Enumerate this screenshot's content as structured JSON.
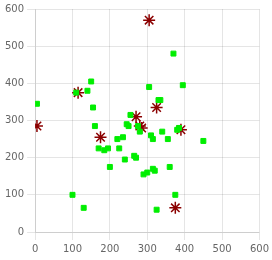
{
  "chart_data": {
    "type": "scatter",
    "series": [
      {
        "color": "#00ee00",
        "marker": "square",
        "x": [
          5,
          100,
          130,
          110,
          140,
          150,
          155,
          160,
          170,
          185,
          195,
          200,
          220,
          225,
          235,
          240,
          245,
          250,
          255,
          265,
          270,
          275,
          280,
          290,
          300,
          305,
          310,
          315,
          315,
          320,
          325,
          330,
          335,
          340,
          355,
          360,
          370,
          375,
          380,
          385,
          395,
          450
        ],
        "values": [
          345,
          100,
          65,
          375,
          380,
          405,
          335,
          285,
          225,
          220,
          225,
          175,
          250,
          225,
          255,
          195,
          290,
          285,
          315,
          205,
          200,
          285,
          270,
          155,
          160,
          390,
          260,
          250,
          170,
          165,
          60,
          355,
          355,
          270,
          250,
          175,
          480,
          100,
          275,
          280,
          395,
          245
        ]
      },
      {
        "color": "#8b0000",
        "marker": "star",
        "x": [
          5,
          115,
          175,
          270,
          280,
          285,
          305,
          325,
          375,
          390
        ],
        "values": [
          285,
          375,
          255,
          310,
          285,
          280,
          570,
          335,
          65,
          275
        ]
      }
    ],
    "xlim": [
      0,
      600
    ],
    "ylim": [
      0,
      600
    ],
    "xticks": [
      0,
      100,
      200,
      300,
      400,
      500,
      600
    ],
    "yticks": [
      0,
      100,
      200,
      300,
      400,
      500,
      600
    ],
    "grid": true
  }
}
